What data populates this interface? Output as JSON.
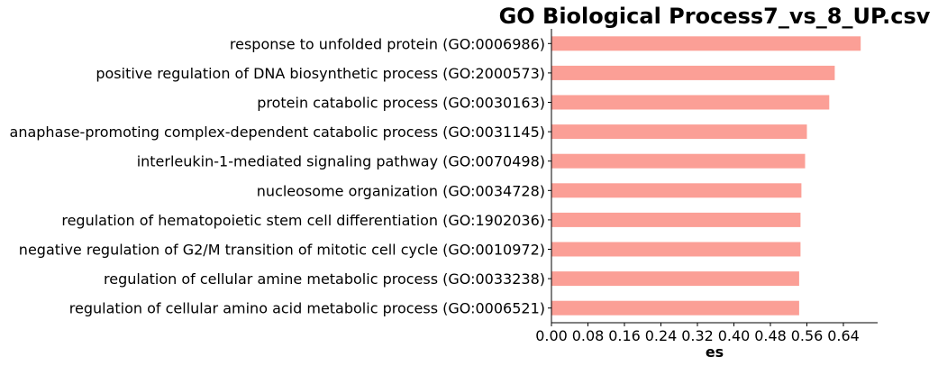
{
  "chart_data": {
    "type": "bar",
    "orientation": "horizontal",
    "title": "GO Biological Process7_vs_8_UP.csv",
    "xlabel": "es",
    "ylabel": "",
    "xlim": [
      0,
      0.7
    ],
    "xticks": [
      "0.00",
      "0.08",
      "0.16",
      "0.24",
      "0.32",
      "0.40",
      "0.48",
      "0.56",
      "0.64"
    ],
    "bar_color": "#fb9f96",
    "grid": false,
    "legend": "none",
    "categories": [
      "response to unfolded protein (GO:0006986)",
      "positive regulation of DNA biosynthetic process (GO:2000573)",
      "protein catabolic process (GO:0030163)",
      "anaphase-promoting complex-dependent catabolic process (GO:0031145)",
      "interleukin-1-mediated signaling pathway (GO:0070498)",
      "nucleosome organization (GO:0034728)",
      "regulation of hematopoietic stem cell differentiation (GO:1902036)",
      "negative regulation of G2/M transition of mitotic cell cycle (GO:0010972)",
      "regulation of cellular amine metabolic process (GO:0033238)",
      "regulation of cellular amino acid metabolic process (GO:0006521)"
    ],
    "values": [
      0.678,
      0.621,
      0.609,
      0.56,
      0.556,
      0.548,
      0.546,
      0.546,
      0.543,
      0.543
    ]
  }
}
